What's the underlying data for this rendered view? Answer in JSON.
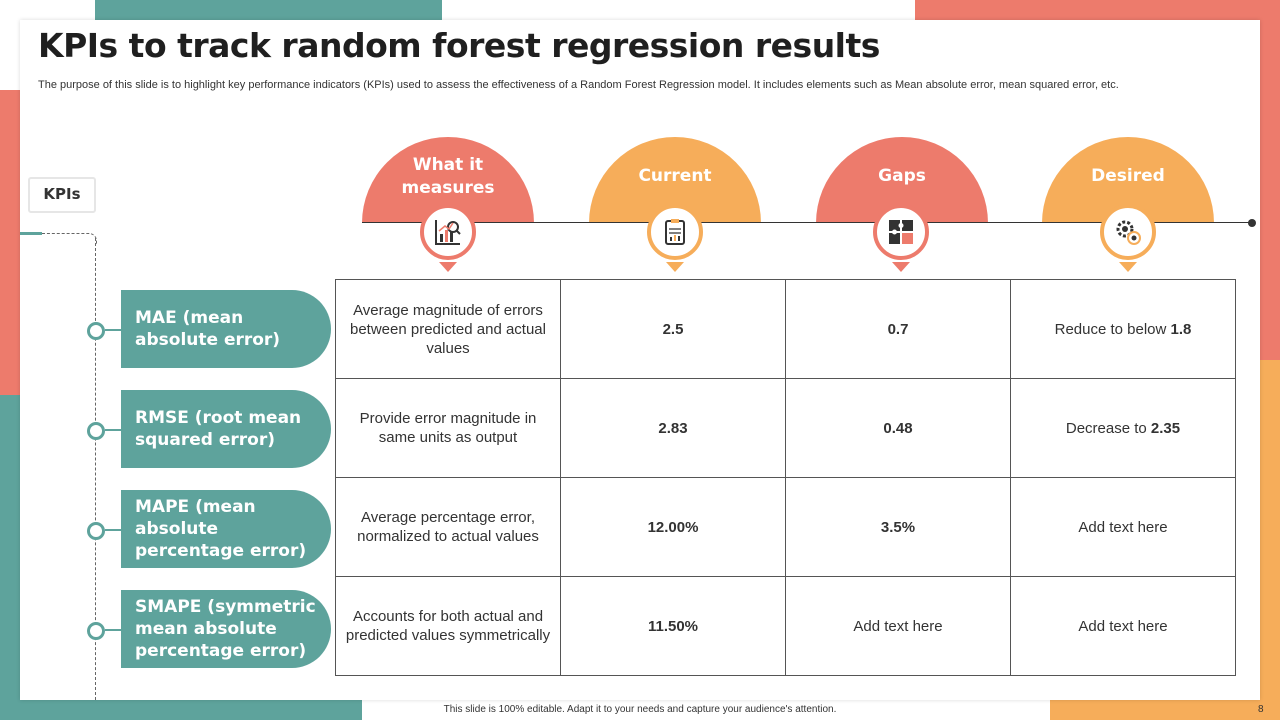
{
  "colors": {
    "teal": "#5ea39c",
    "coral": "#ed7b6c",
    "orange": "#f6ad5a"
  },
  "title": "KPIs to track random forest regression results",
  "subtitle": "The purpose of this slide is to highlight key performance indicators (KPIs) used to assess the effectiveness of a Random Forest Regression model. It includes elements such as Mean absolute error, mean squared error, etc.",
  "kpi_label": "KPIs",
  "columns": [
    {
      "lines": [
        "What it",
        "measures"
      ],
      "icon": "chart-analysis-icon"
    },
    {
      "lines": [
        "Current"
      ],
      "icon": "report-clipboard-icon"
    },
    {
      "lines": [
        "Gaps"
      ],
      "icon": "puzzle-icon"
    },
    {
      "lines": [
        "Desired"
      ],
      "icon": "gear-target-icon"
    }
  ],
  "rows": [
    {
      "kpi": "MAE (mean absolute error)",
      "measures": "Average magnitude of errors between predicted and actual values",
      "current": "2.5",
      "gaps": "0.7",
      "desired_prefix": "Reduce to below ",
      "desired_value": "1.8"
    },
    {
      "kpi": "RMSE (root mean squared error)",
      "measures": "Provide error magnitude in same units as output",
      "current": "2.83",
      "gaps": "0.48",
      "desired_prefix": "Decrease to ",
      "desired_value": "2.35"
    },
    {
      "kpi": "MAPE (mean absolute percentage error)",
      "measures": "Average percentage error, normalized to actual values",
      "current": "12.00%",
      "gaps": "3.5%",
      "desired_prefix": "Add text here",
      "desired_value": ""
    },
    {
      "kpi": "SMAPE (symmetric mean absolute percentage error)",
      "measures": "Accounts for both actual and predicted values symmetrically",
      "current": "11.50%",
      "gaps": "Add text here",
      "desired_prefix": "Add text here",
      "desired_value": ""
    }
  ],
  "footer": "This slide is 100% editable. Adapt it to your needs and capture your audience's attention.",
  "page_number": "8"
}
